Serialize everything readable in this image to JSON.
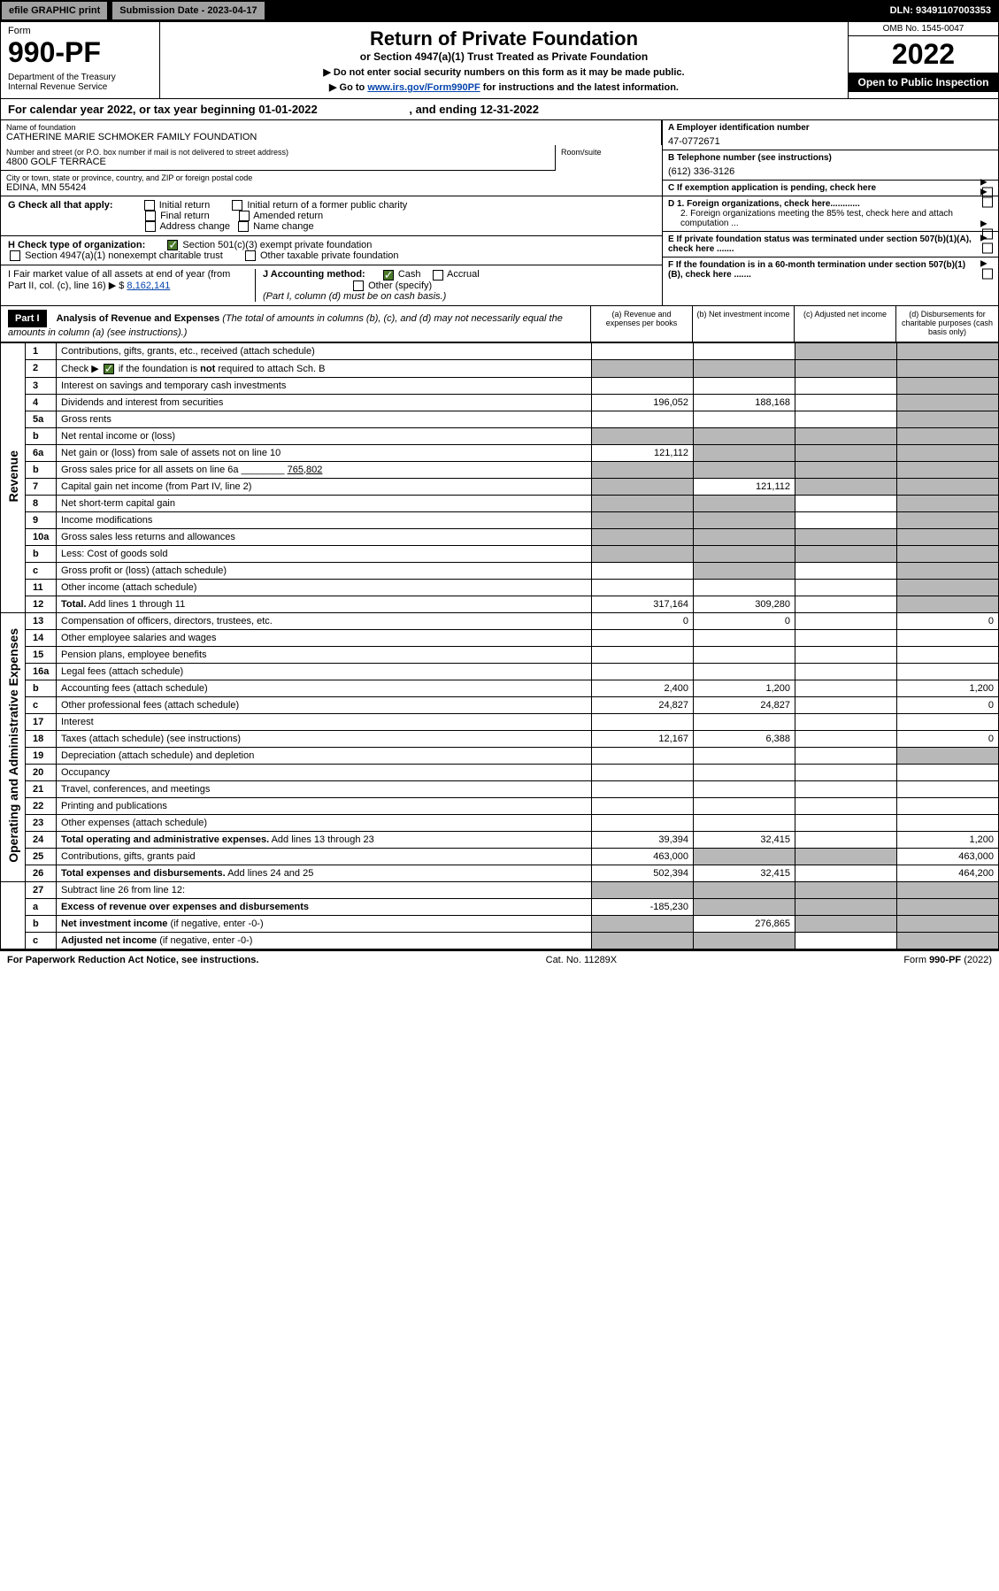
{
  "top": {
    "efile": "efile GRAPHIC print",
    "submission": "Submission Date - 2023-04-17",
    "dln": "DLN: 93491107003353"
  },
  "header": {
    "form_label": "Form",
    "form_no": "990-PF",
    "dept": "Department of the Treasury",
    "irs": "Internal Revenue Service",
    "title": "Return of Private Foundation",
    "subtitle": "or Section 4947(a)(1) Trust Treated as Private Foundation",
    "note1": "▶ Do not enter social security numbers on this form as it may be made public.",
    "note2_pre": "▶ Go to ",
    "note2_link": "www.irs.gov/Form990PF",
    "note2_post": " for instructions and the latest information.",
    "omb": "OMB No. 1545-0047",
    "year": "2022",
    "open": "Open to Public Inspection"
  },
  "calyear": {
    "text_pre": "For calendar year 2022, or tax year beginning ",
    "begin": "01-01-2022",
    "text_mid": " , and ending ",
    "end": "12-31-2022"
  },
  "info": {
    "name_label": "Name of foundation",
    "name": "CATHERINE MARIE SCHMOKER FAMILY FOUNDATION",
    "addr_label": "Number and street (or P.O. box number if mail is not delivered to street address)",
    "addr": "4800 GOLF TERRACE",
    "room_label": "Room/suite",
    "city_label": "City or town, state or province, country, and ZIP or foreign postal code",
    "city": "EDINA, MN  55424",
    "a_label": "A Employer identification number",
    "a_val": "47-0772671",
    "b_label": "B Telephone number (see instructions)",
    "b_val": "(612) 336-3126",
    "c_label": "C If exemption application is pending, check here",
    "d1_label": "D 1. Foreign organizations, check here............",
    "d2_label": "2. Foreign organizations meeting the 85% test, check here and attach computation ...",
    "e_label": "E If private foundation status was terminated under section 507(b)(1)(A), check here .......",
    "f_label": "F If the foundation is in a 60-month termination under section 507(b)(1)(B), check here .......",
    "g_label": "G Check all that apply:",
    "g_opts": [
      "Initial return",
      "Initial return of a former public charity",
      "Final return",
      "Amended return",
      "Address change",
      "Name change"
    ],
    "h_label": "H Check type of organization:",
    "h_opt1": "Section 501(c)(3) exempt private foundation",
    "h_opt2": "Section 4947(a)(1) nonexempt charitable trust",
    "h_opt3": "Other taxable private foundation",
    "i_label": "I Fair market value of all assets at end of year (from Part II, col. (c), line 16) ▶ $",
    "i_val": "8,162,141",
    "j_label": "J Accounting method:",
    "j_cash": "Cash",
    "j_accrual": "Accrual",
    "j_other": "Other (specify)",
    "j_note": "(Part I, column (d) must be on cash basis.)"
  },
  "part1": {
    "label": "Part I",
    "title": "Analysis of Revenue and Expenses",
    "note": "(The total of amounts in columns (b), (c), and (d) may not necessarily equal the amounts in column (a) (see instructions).)",
    "cols": {
      "a": "(a) Revenue and expenses per books",
      "b": "(b) Net investment income",
      "c": "(c) Adjusted net income",
      "d": "(d) Disbursements for charitable purposes (cash basis only)"
    }
  },
  "sections": {
    "revenue": "Revenue",
    "expenses": "Operating and Administrative Expenses"
  },
  "rows": [
    {
      "n": "1",
      "d": "",
      "a": "",
      "b": "",
      "c": "",
      "shade_c": true,
      "shade_d": true
    },
    {
      "n": "2",
      "d": "",
      "a": "",
      "b": "",
      "c": "",
      "shade_a": true,
      "shade_b": true,
      "shade_c": true,
      "shade_d": true,
      "html": true
    },
    {
      "n": "3",
      "d": "",
      "a": "",
      "b": "",
      "c": "",
      "shade_d": true
    },
    {
      "n": "4",
      "d": "",
      "a": "196,052",
      "b": "188,168",
      "c": "",
      "shade_d": true
    },
    {
      "n": "5a",
      "d": "",
      "a": "",
      "b": "",
      "c": "",
      "shade_d": true
    },
    {
      "n": "b",
      "d": "",
      "a": "",
      "b": "",
      "c": "",
      "shade_a": true,
      "shade_b": true,
      "shade_c": true,
      "shade_d": true
    },
    {
      "n": "6a",
      "d": "",
      "a": "121,112",
      "b": "",
      "c": "",
      "shade_b": true,
      "shade_c": true,
      "shade_d": true
    },
    {
      "n": "b",
      "d": "",
      "a": "",
      "b": "",
      "c": "",
      "shade_a": true,
      "shade_b": true,
      "shade_c": true,
      "shade_d": true
    },
    {
      "n": "7",
      "d": "",
      "a": "",
      "b": "121,112",
      "c": "",
      "shade_a": true,
      "shade_c": true,
      "shade_d": true
    },
    {
      "n": "8",
      "d": "",
      "a": "",
      "b": "",
      "c": "",
      "shade_a": true,
      "shade_b": true,
      "shade_d": true
    },
    {
      "n": "9",
      "d": "",
      "a": "",
      "b": "",
      "c": "",
      "shade_a": true,
      "shade_b": true,
      "shade_d": true
    },
    {
      "n": "10a",
      "d": "",
      "a": "",
      "b": "",
      "c": "",
      "shade_a": true,
      "shade_b": true,
      "shade_c": true,
      "shade_d": true
    },
    {
      "n": "b",
      "d": "",
      "a": "",
      "b": "",
      "c": "",
      "shade_a": true,
      "shade_b": true,
      "shade_c": true,
      "shade_d": true
    },
    {
      "n": "c",
      "d": "",
      "a": "",
      "b": "",
      "c": "",
      "shade_b": true,
      "shade_d": true
    },
    {
      "n": "11",
      "d": "",
      "a": "",
      "b": "",
      "c": "",
      "shade_d": true
    },
    {
      "n": "12",
      "d": "",
      "a": "317,164",
      "b": "309,280",
      "c": "",
      "shade_d": true,
      "html": true
    }
  ],
  "exp_rows": [
    {
      "n": "13",
      "d": "0",
      "a": "0",
      "b": "0",
      "c": ""
    },
    {
      "n": "14",
      "d": "",
      "a": "",
      "b": "",
      "c": ""
    },
    {
      "n": "15",
      "d": "",
      "a": "",
      "b": "",
      "c": ""
    },
    {
      "n": "16a",
      "d": "",
      "a": "",
      "b": "",
      "c": ""
    },
    {
      "n": "b",
      "d": "1,200",
      "a": "2,400",
      "b": "1,200",
      "c": ""
    },
    {
      "n": "c",
      "d": "0",
      "a": "24,827",
      "b": "24,827",
      "c": ""
    },
    {
      "n": "17",
      "d": "",
      "a": "",
      "b": "",
      "c": ""
    },
    {
      "n": "18",
      "d": "0",
      "a": "12,167",
      "b": "6,388",
      "c": ""
    },
    {
      "n": "19",
      "d": "",
      "a": "",
      "b": "",
      "c": "",
      "shade_d": true
    },
    {
      "n": "20",
      "d": "",
      "a": "",
      "b": "",
      "c": ""
    },
    {
      "n": "21",
      "d": "",
      "a": "",
      "b": "",
      "c": ""
    },
    {
      "n": "22",
      "d": "",
      "a": "",
      "b": "",
      "c": ""
    },
    {
      "n": "23",
      "d": "",
      "a": "",
      "b": "",
      "c": ""
    },
    {
      "n": "24",
      "d": "1,200",
      "a": "39,394",
      "b": "32,415",
      "c": "",
      "html": true
    },
    {
      "n": "25",
      "d": "463,000",
      "a": "463,000",
      "b": "",
      "c": "",
      "shade_b": true,
      "shade_c": true
    },
    {
      "n": "26",
      "d": "464,200",
      "a": "502,394",
      "b": "32,415",
      "c": "",
      "html": true
    }
  ],
  "final_rows": [
    {
      "n": "27",
      "d": "",
      "a": "",
      "b": "",
      "c": "",
      "shade_a": true,
      "shade_b": true,
      "shade_c": true,
      "shade_d": true
    },
    {
      "n": "a",
      "d": "",
      "a": "-185,230",
      "b": "",
      "c": "",
      "shade_b": true,
      "shade_c": true,
      "shade_d": true,
      "html": true
    },
    {
      "n": "b",
      "d": "",
      "a": "",
      "b": "276,865",
      "c": "",
      "shade_a": true,
      "shade_c": true,
      "shade_d": true,
      "html": true
    },
    {
      "n": "c",
      "d": "",
      "a": "",
      "b": "",
      "c": "",
      "shade_a": true,
      "shade_b": true,
      "shade_d": true,
      "html": true
    }
  ],
  "footer": {
    "left": "For Paperwork Reduction Act Notice, see instructions.",
    "center": "Cat. No. 11289X",
    "right": "Form 990-PF (2022)"
  }
}
